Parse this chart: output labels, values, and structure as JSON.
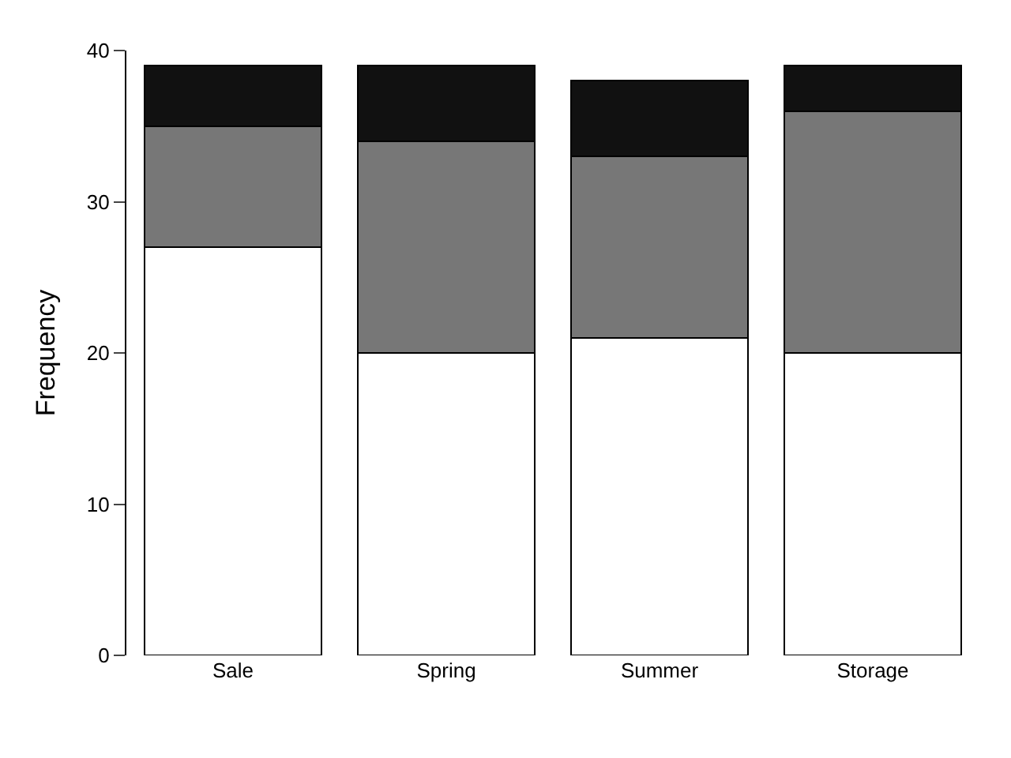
{
  "chart_data": {
    "type": "bar",
    "stacked": true,
    "ylabel": "Frequency",
    "categories": [
      "Sale",
      "Spring",
      "Summer",
      "Storage"
    ],
    "series": [
      {
        "color": "#ffffff",
        "values": [
          27,
          20,
          21,
          20
        ]
      },
      {
        "color": "#777777",
        "values": [
          8,
          14,
          12,
          16
        ]
      },
      {
        "color": "#111111",
        "values": [
          4,
          5,
          5,
          3
        ]
      }
    ],
    "ylim": [
      0,
      40
    ],
    "yticks": [
      0,
      10,
      20,
      30,
      40
    ]
  }
}
